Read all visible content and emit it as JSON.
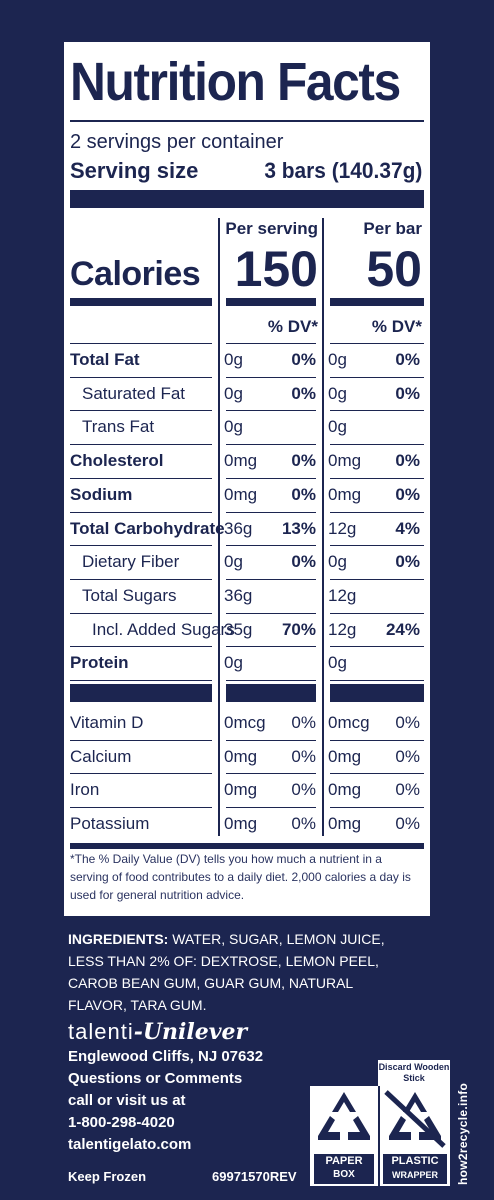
{
  "title": "Nutrition Facts",
  "servings_per_container": "2 servings per container",
  "serving_size_label": "Serving size",
  "serving_size_value": "3 bars (140.37g)",
  "columns": {
    "per_serving": "Per serving",
    "per_bar": "Per bar"
  },
  "calories": {
    "label": "Calories",
    "per_serving": "150",
    "per_bar": "50"
  },
  "dv_header": "% DV*",
  "nutrients": [
    {
      "name": "Total Fat",
      "bold": true,
      "indent": 0,
      "s_amt": "0g",
      "s_dv": "0%",
      "b_amt": "0g",
      "b_dv": "0%"
    },
    {
      "name": "Saturated Fat",
      "bold": false,
      "indent": 1,
      "s_amt": "0g",
      "s_dv": "0%",
      "b_amt": "0g",
      "b_dv": "0%"
    },
    {
      "name": "Trans Fat",
      "bold": false,
      "indent": 1,
      "s_amt": "0g",
      "s_dv": "",
      "b_amt": "0g",
      "b_dv": ""
    },
    {
      "name": "Cholesterol",
      "bold": true,
      "indent": 0,
      "s_amt": "0mg",
      "s_dv": "0%",
      "b_amt": "0mg",
      "b_dv": "0%"
    },
    {
      "name": "Sodium",
      "bold": true,
      "indent": 0,
      "s_amt": "0mg",
      "s_dv": "0%",
      "b_amt": "0mg",
      "b_dv": "0%"
    },
    {
      "name": "Total Carbohydrate",
      "bold": true,
      "indent": 0,
      "s_amt": "36g",
      "s_dv": "13%",
      "b_amt": "12g",
      "b_dv": "4%"
    },
    {
      "name": "Dietary Fiber",
      "bold": false,
      "indent": 1,
      "s_amt": "0g",
      "s_dv": "0%",
      "b_amt": "0g",
      "b_dv": "0%"
    },
    {
      "name": "Total Sugars",
      "bold": false,
      "indent": 1,
      "s_amt": "36g",
      "s_dv": "",
      "b_amt": "12g",
      "b_dv": ""
    },
    {
      "name": "Incl. Added Sugars",
      "bold": false,
      "indent": 2,
      "s_amt": "35g",
      "s_dv": "70%",
      "b_amt": "12g",
      "b_dv": "24%"
    },
    {
      "name": "Protein",
      "bold": true,
      "indent": 0,
      "s_amt": "0g",
      "s_dv": "",
      "b_amt": "0g",
      "b_dv": ""
    }
  ],
  "vitamins": [
    {
      "name": "Vitamin D",
      "s_amt": "0mcg",
      "s_dv": "0%",
      "b_amt": "0mcg",
      "b_dv": "0%"
    },
    {
      "name": "Calcium",
      "s_amt": "0mg",
      "s_dv": "0%",
      "b_amt": "0mg",
      "b_dv": "0%"
    },
    {
      "name": "Iron",
      "s_amt": "0mg",
      "s_dv": "0%",
      "b_amt": "0mg",
      "b_dv": "0%"
    },
    {
      "name": "Potassium",
      "s_amt": "0mg",
      "s_dv": "0%",
      "b_amt": "0mg",
      "b_dv": "0%"
    }
  ],
  "footnote": "*The % Daily Value (DV) tells you how much a nutrient in a serving of food contributes to a daily diet. 2,000 calories a day is used for general nutrition advice.",
  "ingredients_label": "INGREDIENTS:",
  "ingredients_text": "WATER, SUGAR, LEMON JUICE, LESS THAN 2% OF: DEXTROSE, LEMON PEEL, CAROB BEAN GUM, GUAR GUM, NATURAL FLAVOR, TARA GUM.",
  "brand": {
    "talenti": "talenti",
    "dash": "-",
    "unilever": "Unilever"
  },
  "address": "Englewood Cliffs, NJ 07632",
  "contact_lines": [
    "Questions or Comments",
    "call or visit us at",
    "1-800-298-4020",
    "talentigelato.com"
  ],
  "keep_frozen": "Keep Frozen",
  "product_code": "69971570REV",
  "recycle": {
    "discard_note": "Discard Wooden Stick",
    "paper_line1": "PAPER",
    "paper_line2": "BOX",
    "plastic_line1": "PLASTIC",
    "plastic_line2": "WRAPPER",
    "url": "how2recycle.info"
  },
  "colors": {
    "navy": "#1c2550",
    "white": "#ffffff"
  }
}
